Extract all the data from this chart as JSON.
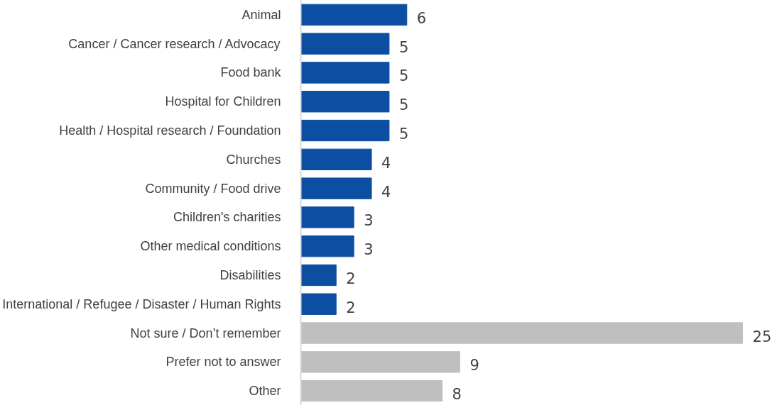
{
  "chart_data": {
    "type": "bar",
    "orientation": "horizontal",
    "categories": [
      "Animal",
      "Cancer / Cancer research / Advocacy",
      "Food bank",
      "Hospital for Children",
      "Health / Hospital research / Foundation",
      "Churches",
      "Community / Food drive",
      "Children's charities",
      "Other medical conditions",
      "Disabilities",
      "International / Refugee / Disaster / Human Rights",
      "Not sure / Don’t remember",
      "Prefer not to answer",
      "Other"
    ],
    "values": [
      6,
      5,
      5,
      5,
      5,
      4,
      4,
      3,
      3,
      2,
      2,
      25,
      9,
      8
    ],
    "colors": [
      "#0b4ea2",
      "#0b4ea2",
      "#0b4ea2",
      "#0b4ea2",
      "#0b4ea2",
      "#0b4ea2",
      "#0b4ea2",
      "#0b4ea2",
      "#0b4ea2",
      "#0b4ea2",
      "#0b4ea2",
      "#bfbfbf",
      "#bfbfbf",
      "#bfbfbf"
    ],
    "data_labels": true,
    "grid": false
  }
}
